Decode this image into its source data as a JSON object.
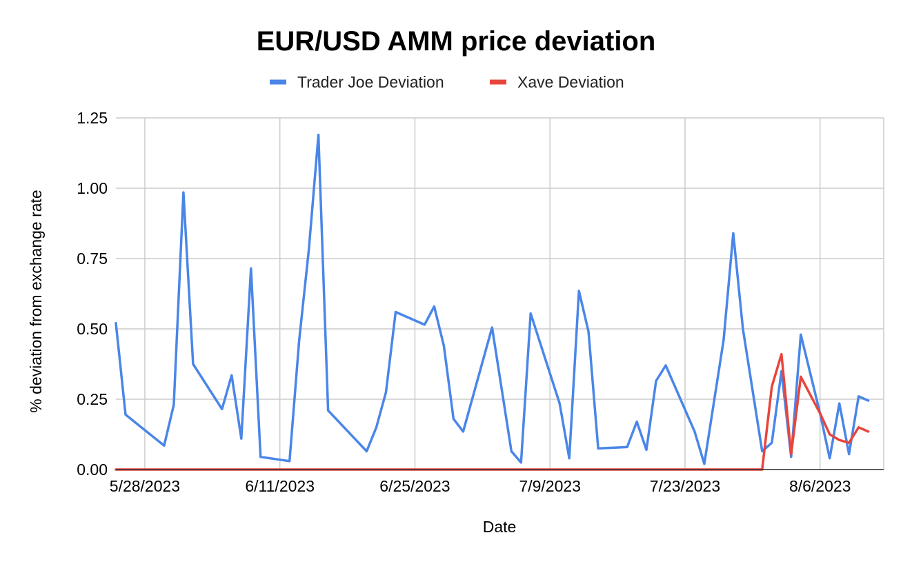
{
  "chart_data": {
    "type": "line",
    "title": "EUR/USD AMM price deviation",
    "xlabel": "Date",
    "ylabel": "% deviation from exchange rate",
    "ylim": [
      0,
      1.25
    ],
    "yticks": [
      "0.00",
      "0.25",
      "0.50",
      "0.75",
      "1.00",
      "1.25"
    ],
    "x_day_range": [
      -3,
      76.6
    ],
    "x_note": "x values are days after 5/28/2023",
    "xticks": [
      {
        "day": 0,
        "label": "5/28/2023"
      },
      {
        "day": 14,
        "label": "6/11/2023"
      },
      {
        "day": 28,
        "label": "6/25/2023"
      },
      {
        "day": 42,
        "label": "7/9/2023"
      },
      {
        "day": 56,
        "label": "7/23/2023"
      },
      {
        "day": 70,
        "label": "8/6/2023"
      }
    ],
    "grid": true,
    "legend_position": "top-center",
    "series": [
      {
        "name": "Trader Joe Deviation",
        "color": "#4a86e8",
        "points": [
          [
            -3,
            0.52
          ],
          [
            -2,
            0.195
          ],
          [
            2,
            0.085
          ],
          [
            3,
            0.23
          ],
          [
            4,
            0.985
          ],
          [
            5,
            0.375
          ],
          [
            8,
            0.215
          ],
          [
            9,
            0.335
          ],
          [
            10,
            0.11
          ],
          [
            11,
            0.715
          ],
          [
            12,
            0.045
          ],
          [
            15,
            0.03
          ],
          [
            16,
            0.46
          ],
          [
            17,
            0.78
          ],
          [
            18,
            1.19
          ],
          [
            19,
            0.21
          ],
          [
            23,
            0.065
          ],
          [
            24,
            0.15
          ],
          [
            25,
            0.275
          ],
          [
            26,
            0.56
          ],
          [
            29,
            0.515
          ],
          [
            30,
            0.58
          ],
          [
            31,
            0.44
          ],
          [
            32,
            0.18
          ],
          [
            33,
            0.135
          ],
          [
            36,
            0.505
          ],
          [
            38,
            0.065
          ],
          [
            39,
            0.025
          ],
          [
            40,
            0.555
          ],
          [
            43,
            0.235
          ],
          [
            44,
            0.04
          ],
          [
            45,
            0.635
          ],
          [
            46,
            0.49
          ],
          [
            47,
            0.075
          ],
          [
            50,
            0.08
          ],
          [
            51,
            0.17
          ],
          [
            52,
            0.07
          ],
          [
            53,
            0.315
          ],
          [
            54,
            0.37
          ],
          [
            57,
            0.135
          ],
          [
            58,
            0.02
          ],
          [
            60,
            0.46
          ],
          [
            61,
            0.84
          ],
          [
            62,
            0.5
          ],
          [
            64,
            0.065
          ],
          [
            65,
            0.095
          ],
          [
            66,
            0.35
          ],
          [
            67,
            0.045
          ],
          [
            68,
            0.48
          ],
          [
            70,
            0.2
          ],
          [
            71,
            0.04
          ],
          [
            72,
            0.235
          ],
          [
            73,
            0.055
          ],
          [
            74,
            0.26
          ],
          [
            75,
            0.245
          ]
        ]
      },
      {
        "name": "Xave Deviation",
        "color": "#e8453c",
        "points": [
          [
            -3,
            0
          ],
          [
            64,
            0
          ],
          [
            65,
            0.295
          ],
          [
            66,
            0.41
          ],
          [
            67,
            0.055
          ],
          [
            68,
            0.33
          ],
          [
            70,
            0.2
          ],
          [
            71,
            0.125
          ],
          [
            72,
            0.105
          ],
          [
            73,
            0.095
          ],
          [
            74,
            0.15
          ],
          [
            75,
            0.135
          ]
        ]
      }
    ]
  }
}
